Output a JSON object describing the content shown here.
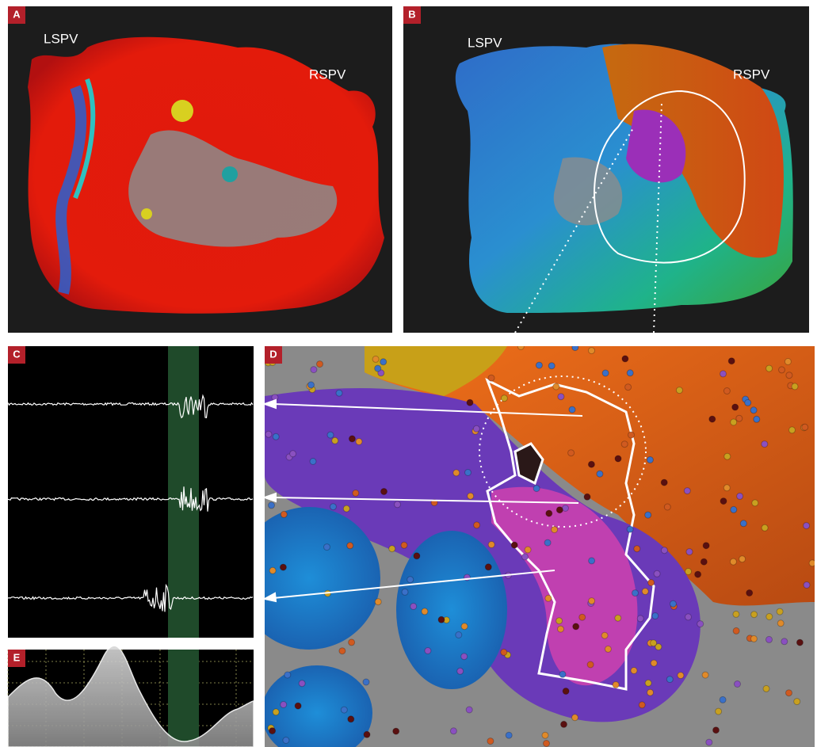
{
  "panels": [
    {
      "label": "A",
      "annotations": [
        "LSPV",
        "RSPV"
      ]
    },
    {
      "label": "B",
      "annotations": [
        "LSPV",
        "RSPV"
      ]
    },
    {
      "label": "C"
    },
    {
      "label": "D"
    },
    {
      "label": "E"
    }
  ]
}
